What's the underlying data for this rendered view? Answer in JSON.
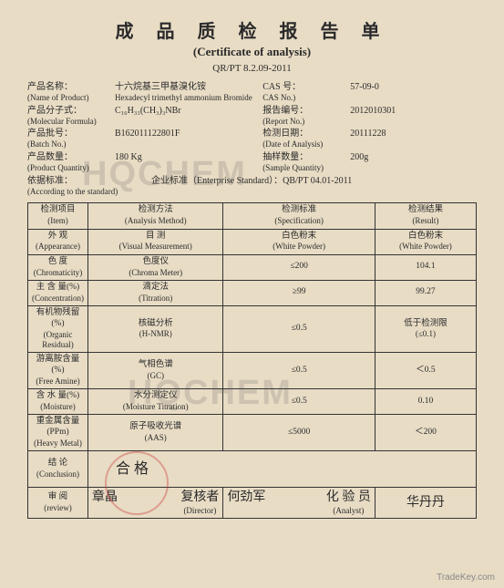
{
  "title_cn": "成 品 质 检 报 告 单",
  "title_en": "(Certificate of analysis)",
  "doc_no": "QR/PT 8.2.09-2011",
  "header": {
    "product_name": {
      "label_cn": "产品名称：",
      "label_en": "(Name of Product)",
      "value_cn": "十六烷基三甲基溴化铵",
      "value_en": "Hexadecyl trimethyl ammonium Bromide"
    },
    "cas": {
      "label_cn": "CAS 号：",
      "label_en": "CAS No.)",
      "value": "57-09-0"
    },
    "formula": {
      "label_cn": "产品分子式：",
      "label_en": "(Molecular Formula)",
      "value": "C₁₆H₃₃(CH₃)₃NBr"
    },
    "report_no": {
      "label_cn": "报告编号：",
      "label_en": "(Report No.)",
      "value": "2012010301"
    },
    "batch_no": {
      "label_cn": "产品批号：",
      "label_en": "(Batch No.)",
      "value": "B162011122801F"
    },
    "date": {
      "label_cn": "检测日期：",
      "label_en": "(Date of Analysis)",
      "value": "20111228"
    },
    "qty": {
      "label_cn": "产品数量：",
      "label_en": "(Product Quantity)",
      "value": "180 Kg"
    },
    "sample": {
      "label_cn": "抽样数量：",
      "label_en": "(Sample Quantity)",
      "value": "200g"
    },
    "standard": {
      "label_cn": "依据标准：",
      "label_en": "(According to the standard)",
      "value": "企业标准（Enterprise Standard）：QB/PT 04.01-2011"
    }
  },
  "table": {
    "cols": [
      {
        "cn": "检测项目",
        "en": "(Item)"
      },
      {
        "cn": "检测方法",
        "en": "(Analysis Method)"
      },
      {
        "cn": "检测标准",
        "en": "(Specification)"
      },
      {
        "cn": "检测结果",
        "en": "(Result)"
      }
    ],
    "rows": [
      {
        "item_cn": "外 观",
        "item_en": "(Appearance)",
        "method_cn": "目 测",
        "method_en": "(Visual Measurement)",
        "spec_cn": "白色粉末",
        "spec_en": "(White Powder)",
        "result_cn": "白色粉末",
        "result_en": "(White Powder)"
      },
      {
        "item_cn": "色 度",
        "item_en": "(Chromaticity)",
        "method_cn": "色度仪",
        "method_en": "(Chroma Meter)",
        "spec": "≤200",
        "result": "104.1"
      },
      {
        "item_cn": "主 含 量(%)",
        "item_en": "(Concentration)",
        "method_cn": "滴定法",
        "method_en": "(Titration)",
        "spec": "≥99",
        "result": "99.27"
      },
      {
        "item_cn": "有机物残留(%)",
        "item_en": "(Organic Residual)",
        "method_cn": "核磁分析",
        "method_en": "(H-NMR)",
        "spec": "≤0.5",
        "result_cn": "低于检测限",
        "result_en": "(≤0.1)"
      },
      {
        "item_cn": "游离胺含量(%)",
        "item_en": "(Free Amine)",
        "method_cn": "气相色谱",
        "method_en": "(GC)",
        "spec": "≤0.5",
        "result": "＜0.5"
      },
      {
        "item_cn": "含 水 量(%)",
        "item_en": "(Moisture)",
        "method_cn": "水分测定仪",
        "method_en": "(Moisture Titration)",
        "spec": "≤0.5",
        "result": "0.10"
      },
      {
        "item_cn": "重金属含量(PPm)",
        "item_en": "(Heavy Metal)",
        "method_cn": "原子吸收光谱",
        "method_en": "(AAS)",
        "spec": "≤5000",
        "result": "＜200"
      }
    ]
  },
  "conclusion": {
    "label_cn": "结 论",
    "label_en": "(Conclusion)",
    "value": "合 格"
  },
  "sign": {
    "review": {
      "label_cn": "审 阅",
      "label_en": "(review)",
      "value": "章晶"
    },
    "director": {
      "label_cn": "复核者",
      "label_en": "(Director)",
      "value": "何劲军"
    },
    "analyst": {
      "label_cn": "化 验 员",
      "label_en": "(Analyst)",
      "value": "华丹丹"
    }
  },
  "watermark": "HQCHEM",
  "footer": "TradeKey.com"
}
